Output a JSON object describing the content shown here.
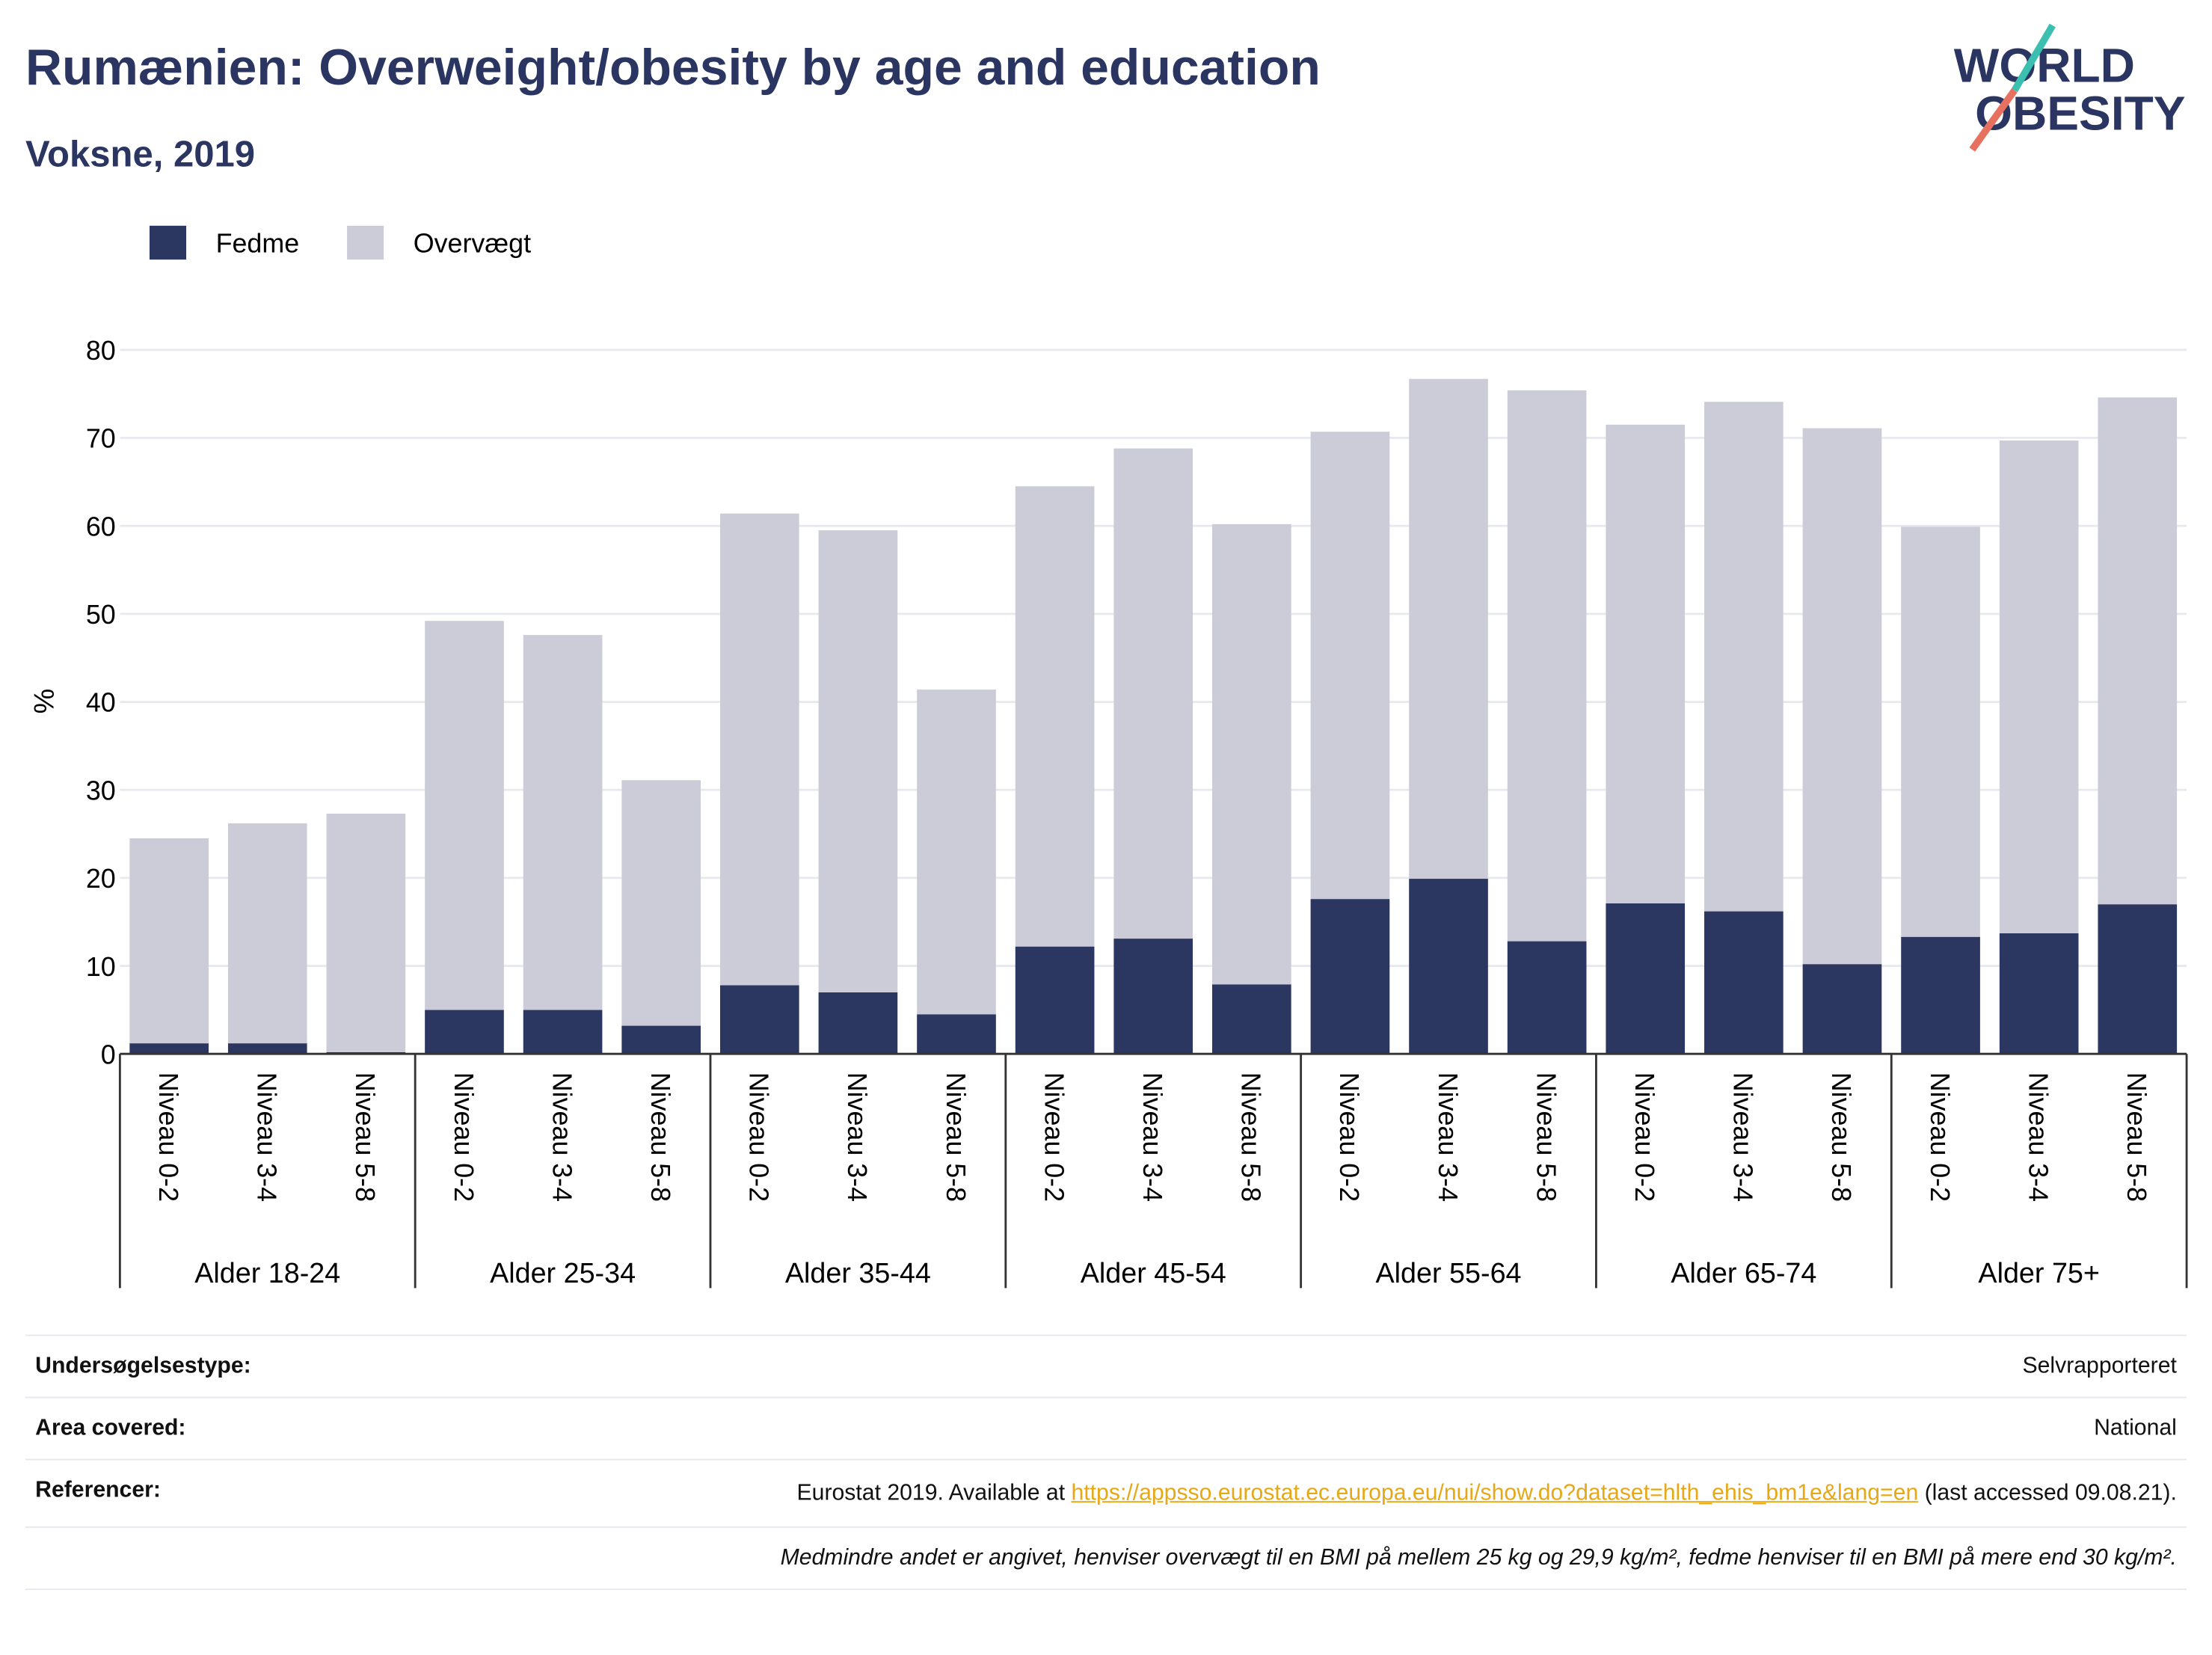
{
  "chart_data": {
    "type": "stacked_bar",
    "title": "Rumænien: Overweight/obesity by age and education",
    "subtitle": "Voksne, 2019",
    "y_label": "%",
    "categories": [
      "Niveau 0-2",
      "Niveau 3-4",
      "Niveau 5-8",
      "Niveau 0-2",
      "Niveau 3-4",
      "Niveau 5-8",
      "Niveau 0-2",
      "Niveau 3-4",
      "Niveau 5-8",
      "Niveau 0-2",
      "Niveau 3-4",
      "Niveau 5-8",
      "Niveau 0-2",
      "Niveau 3-4",
      "Niveau 5-8",
      "Niveau 0-2",
      "Niveau 3-4",
      "Niveau 5-8",
      "Niveau 0-2",
      "Niveau 3-4",
      "Niveau 5-8"
    ],
    "groups": [
      "Alder 18-24",
      "Alder 25-34",
      "Alder 35-44",
      "Alder 45-54",
      "Alder 55-64",
      "Alder 65-74",
      "Alder 75+"
    ],
    "series": [
      {
        "name": "Fedme",
        "color": "#2b3661",
        "values": [
          1.2,
          1.2,
          0.2,
          5.0,
          5.0,
          3.2,
          7.8,
          7.0,
          4.5,
          12.2,
          13.1,
          7.9,
          17.6,
          19.9,
          12.8,
          17.1,
          16.2,
          10.2,
          13.3,
          13.7,
          17.0
        ]
      },
      {
        "name": "Overvægt",
        "color": "#cbccd8",
        "values": [
          23.3,
          25.0,
          27.1,
          44.2,
          42.6,
          27.9,
          53.6,
          52.5,
          36.9,
          52.3,
          55.7,
          52.3,
          53.1,
          56.8,
          62.6,
          54.4,
          57.9,
          60.9,
          46.6,
          56.0,
          57.6
        ]
      }
    ],
    "ylim": [
      0,
      80
    ],
    "yticks": [
      0,
      10,
      20,
      30,
      40,
      50,
      60,
      70,
      80
    ],
    "grid": true
  },
  "logo": {
    "line1": "WORLD",
    "line2": "OBESITY"
  },
  "footer": {
    "rows": [
      {
        "label": "Undersøgelsestype:",
        "value": "Selvrapporteret"
      },
      {
        "label": "Area covered:",
        "value": "National"
      }
    ],
    "references": {
      "label": "Referencer:",
      "before": "Eurostat 2019. Available at",
      "link": "https://appsso.eurostat.ec.europa.eu/nui/show.do?dataset=hlth_ehis_bm1e&lang=en",
      "after": "(last accessed 09.08.21)."
    },
    "note": "Medmindre andet er angivet, henviser overvægt til en BMI på mellem 25 kg og 29,9 kg/m², fedme henviser til en BMI på mere end 30 kg/m²."
  }
}
